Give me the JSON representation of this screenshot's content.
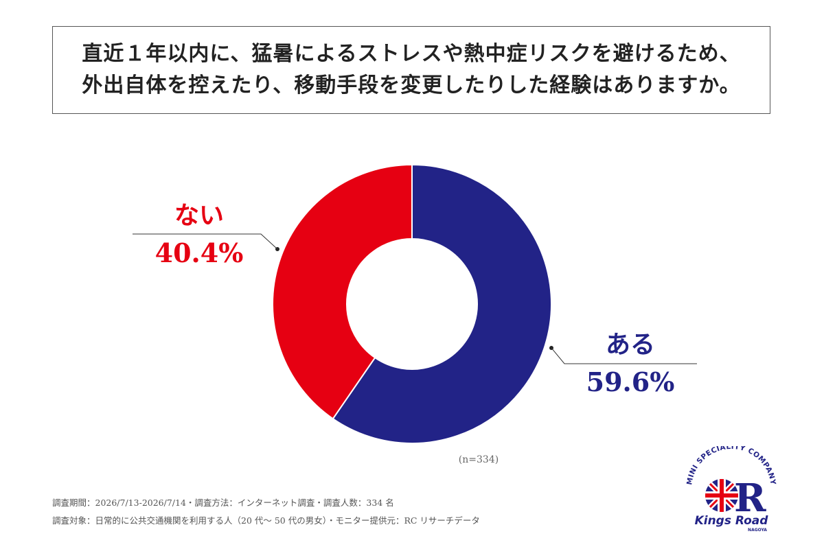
{
  "title": {
    "line1": "直近１年以内に、猛暑によるストレスや熱中症リスクを避けるため、",
    "line2": "外出自体を控えたり、移動手段を変更したりした経験はありますか。"
  },
  "chart_data": {
    "type": "pie",
    "donut": true,
    "slices": [
      {
        "label": "ある",
        "value": 59.6,
        "value_label": "59.6%",
        "color": "#222387"
      },
      {
        "label": "ない",
        "value": 40.4,
        "value_label": "40.4%",
        "color": "#e60012"
      }
    ],
    "sample_size": "(n=334)"
  },
  "footer": {
    "line1": "調査期間：2026/7/13-2026/7/14・調査方法：インターネット調査・調査人数：334 名",
    "line2": "調査対象：日常的に公共交通機関を利用する人（20 代～ 50 代の男女）・モニター提供元：RC リサーチデータ"
  },
  "logo": {
    "arc_text": "MINI SPECIALITY COMPANY",
    "brand": "Kings Road",
    "sub": "NAGOYA",
    "letter": "R"
  }
}
